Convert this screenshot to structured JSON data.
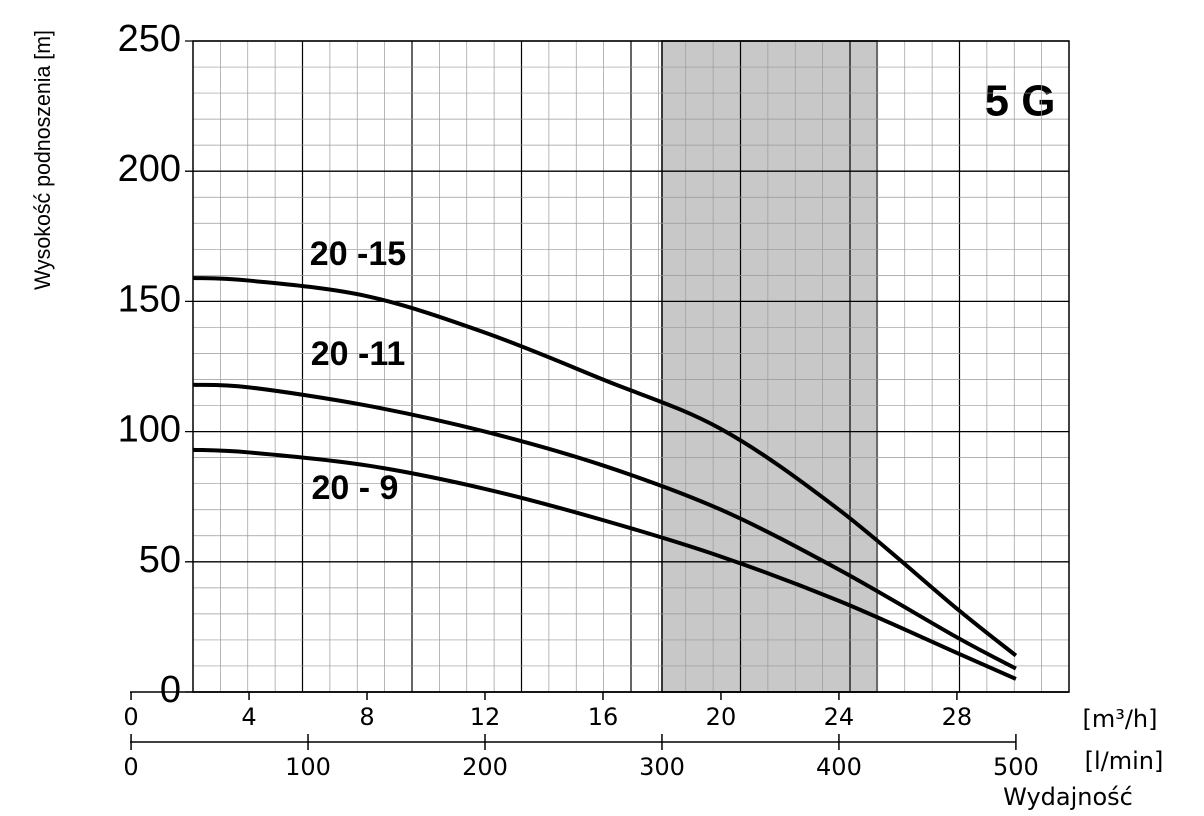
{
  "chart_data": {
    "type": "line",
    "title": "5 G",
    "y_label": "Wysokość podnoszenia [m]",
    "x_label": "[m³/h]",
    "x2_label": "[l/min]",
    "x2_title": "Wydajność",
    "x": [
      2.1,
      4,
      8,
      12,
      16,
      20,
      24,
      28,
      30
    ],
    "series": [
      {
        "name": "20 -15",
        "color": "#000000",
        "values": [
          159,
          158,
          152,
          138,
          120,
          101,
          70,
          32,
          14
        ]
      },
      {
        "name": "20 -11",
        "color": "#000000",
        "values": [
          118,
          117,
          110,
          100,
          87,
          70,
          47,
          21,
          9
        ]
      },
      {
        "name": "20 - 9",
        "color": "#000000",
        "values": [
          93,
          92,
          87,
          78,
          66,
          52,
          35,
          15,
          5
        ]
      }
    ],
    "label_color": "#e02020",
    "shaded_range": [
      18,
      25.3
    ],
    "shade_color": "#c8c8c8",
    "xlim": [
      2.1,
      31.8
    ],
    "xticks": [
      0,
      4,
      8,
      12,
      16,
      20,
      24,
      28
    ],
    "x2lim": [
      35,
      530
    ],
    "x2ticks": [
      0,
      100,
      200,
      300,
      400,
      500
    ],
    "ylim": [
      0,
      250
    ],
    "yticks": [
      0,
      50,
      100,
      150,
      200,
      250
    ],
    "grid": true
  }
}
